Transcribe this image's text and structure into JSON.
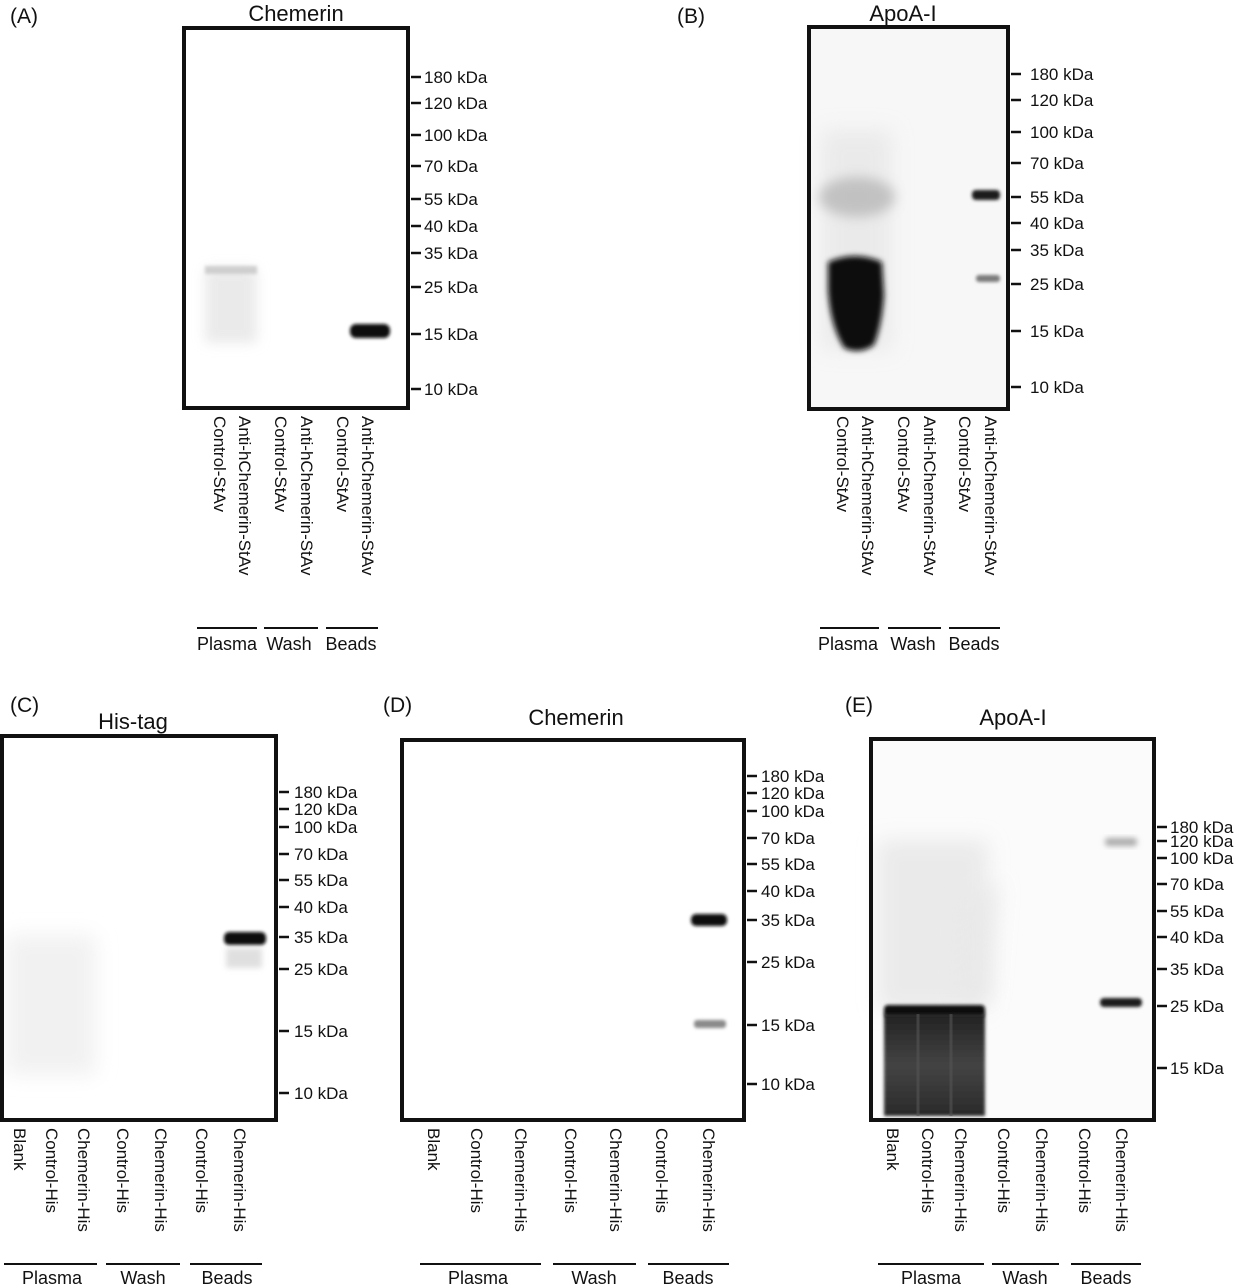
{
  "panels": [
    {
      "id": "A",
      "label": "(A)",
      "title": "Chemerin",
      "markers": [
        "180 kDa",
        "120 kDa",
        "100 kDa",
        "70 kDa",
        "55 kDa",
        "40 kDa",
        "35 kDa",
        "25 kDa",
        "15 kDa",
        "10 kDa"
      ],
      "lanes": [
        "Control-StAv",
        "Anti-hChemerin-StAv",
        "Control-StAv",
        "Anti-hChemerin-StAv",
        "Control-StAv",
        "Anti-hChemerin-StAv"
      ],
      "groups": [
        "Plasma",
        "Wash",
        "Beads"
      ]
    },
    {
      "id": "B",
      "label": "(B)",
      "title": "ApoA-I",
      "markers": [
        "180 kDa",
        "120 kDa",
        "100 kDa",
        "70 kDa",
        "55 kDa",
        "40 kDa",
        "35 kDa",
        "25 kDa",
        "15 kDa",
        "10 kDa"
      ],
      "lanes": [
        "Control-StAv",
        "Anti-hChemerin-StAv",
        "Control-StAv",
        "Anti-hChemerin-StAv",
        "Control-StAv",
        "Anti-hChemerin-StAv"
      ],
      "groups": [
        "Plasma",
        "Wash",
        "Beads"
      ]
    },
    {
      "id": "C",
      "label": "(C)",
      "title": "His-tag",
      "markers": [
        "180 kDa",
        "120 kDa",
        "100 kDa",
        "70 kDa",
        "55 kDa",
        "40 kDa",
        "35 kDa",
        "25 kDa",
        "15 kDa",
        "10 kDa"
      ],
      "lanes": [
        "Blank",
        "Control-His",
        "Chemerin-His",
        "Control-His",
        "Chemerin-His",
        "Control-His",
        "Chemerin-His"
      ],
      "groups": [
        "Plasma",
        "Wash",
        "Beads"
      ]
    },
    {
      "id": "D",
      "label": "(D)",
      "title": "Chemerin",
      "markers": [
        "180 kDa",
        "120 kDa",
        "100 kDa",
        "70 kDa",
        "55 kDa",
        "40 kDa",
        "35 kDa",
        "25 kDa",
        "15 kDa",
        "10 kDa"
      ],
      "lanes": [
        "Blank",
        "Control-His",
        "Chemerin-His",
        "Control-His",
        "Chemerin-His",
        "Control-His",
        "Chemerin-His"
      ],
      "groups": [
        "Plasma",
        "Wash",
        "Beads"
      ]
    },
    {
      "id": "E",
      "label": "(E)",
      "title": "ApoA-I",
      "markers": [
        "180 kDa",
        "120 kDa",
        "100 kDa",
        "70 kDa",
        "55 kDa",
        "40 kDa",
        "35 kDa",
        "25 kDa",
        "15 kDa"
      ],
      "lanes": [
        "Blank",
        "Control-His",
        "Chemerin-His",
        "Control-His",
        "Chemerin-His",
        "Control-His",
        "Chemerin-His"
      ],
      "groups": [
        "Plasma",
        "Wash",
        "Beads"
      ]
    }
  ]
}
